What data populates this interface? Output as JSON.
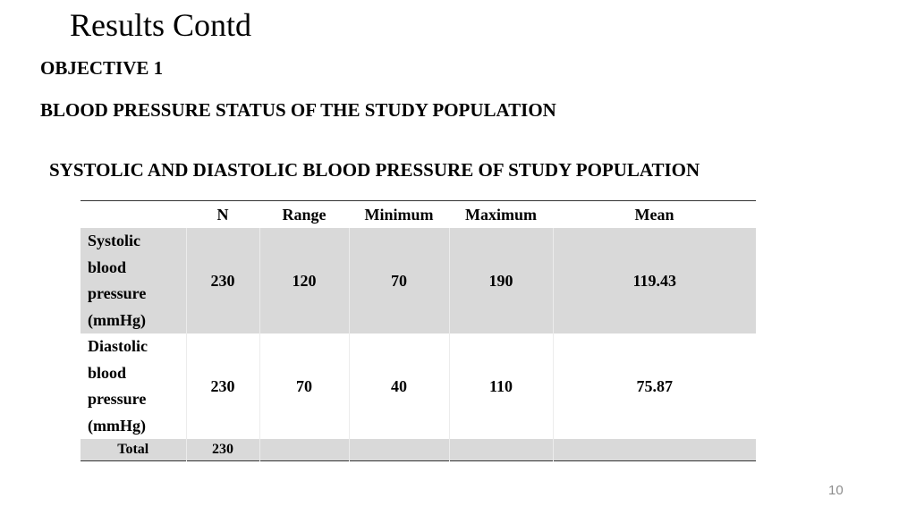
{
  "slide": {
    "title": "Results Contd",
    "objective": "OBJECTIVE 1",
    "heading": "BLOOD PRESSURE STATUS OF THE STUDY POPULATION",
    "table_title": "SYSTOLIC AND DIASTOLIC BLOOD PRESSURE OF STUDY POPULATION",
    "page_number": "10"
  },
  "table": {
    "headers": [
      "",
      "N",
      "Range",
      "Minimum",
      "Maximum",
      "Mean"
    ],
    "rows": [
      {
        "label_lines": [
          "Systolic",
          "blood",
          "pressure",
          "(mmHg)"
        ],
        "cells": [
          "230",
          "120",
          "70",
          "190",
          "119.43"
        ]
      },
      {
        "label_lines": [
          "Diastolic",
          "blood",
          "pressure",
          "(mmHg)"
        ],
        "cells": [
          "230",
          "70",
          "40",
          "110",
          "75.87"
        ]
      },
      {
        "label": "Total",
        "cells": [
          "230",
          "",
          "",
          "",
          ""
        ]
      }
    ]
  }
}
